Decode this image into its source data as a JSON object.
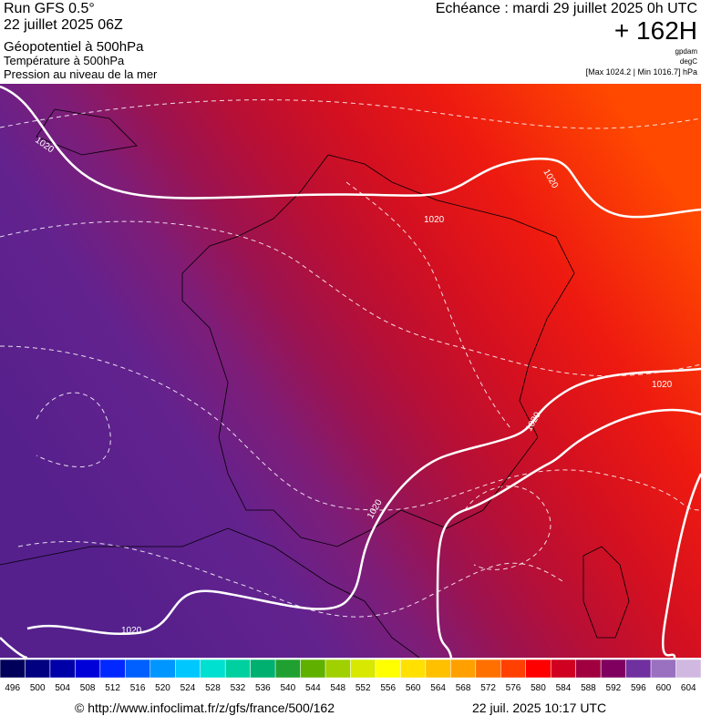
{
  "header": {
    "run": "Run GFS 0.5°",
    "date": "22 juillet 2025 06Z",
    "field1": "Géopotentiel à 500hPa",
    "field2": "Température à 500hPa",
    "field3": "Pression au niveau de la mer",
    "echeance": "Echéance : mardi 29 juillet 2025 0h UTC",
    "lead": "+ 162H",
    "unit1": "gpdam",
    "unit2": "degC",
    "maxmin": "[Max 1024.2 | Min 1016.7] hPa"
  },
  "isobar_labels": [
    "1020",
    "1020",
    "1020",
    "1020",
    "1020",
    "1020",
    "1020"
  ],
  "scale": {
    "values": [
      496,
      500,
      504,
      508,
      512,
      516,
      520,
      524,
      528,
      532,
      536,
      540,
      544,
      548,
      552,
      556,
      560,
      564,
      568,
      572,
      576,
      580,
      584,
      588,
      592,
      596,
      600,
      604
    ],
    "colors": [
      "#00005a",
      "#000080",
      "#0000a8",
      "#0000d8",
      "#0028ff",
      "#0060ff",
      "#0096ff",
      "#00c8ff",
      "#00e0d0",
      "#00d0a0",
      "#00b070",
      "#20a030",
      "#60b000",
      "#a0d000",
      "#d8e800",
      "#ffff00",
      "#ffe000",
      "#ffc000",
      "#ffa000",
      "#ff7000",
      "#ff4000",
      "#ff0000",
      "#d00020",
      "#a00040",
      "#800060",
      "#7030a0",
      "#9a70c0",
      "#d0b8e0"
    ]
  },
  "footer": {
    "url": "© http://www.infoclimat.fr/z/gfs/france/500/162",
    "time": "22 juil. 2025 10:17 UTC"
  }
}
